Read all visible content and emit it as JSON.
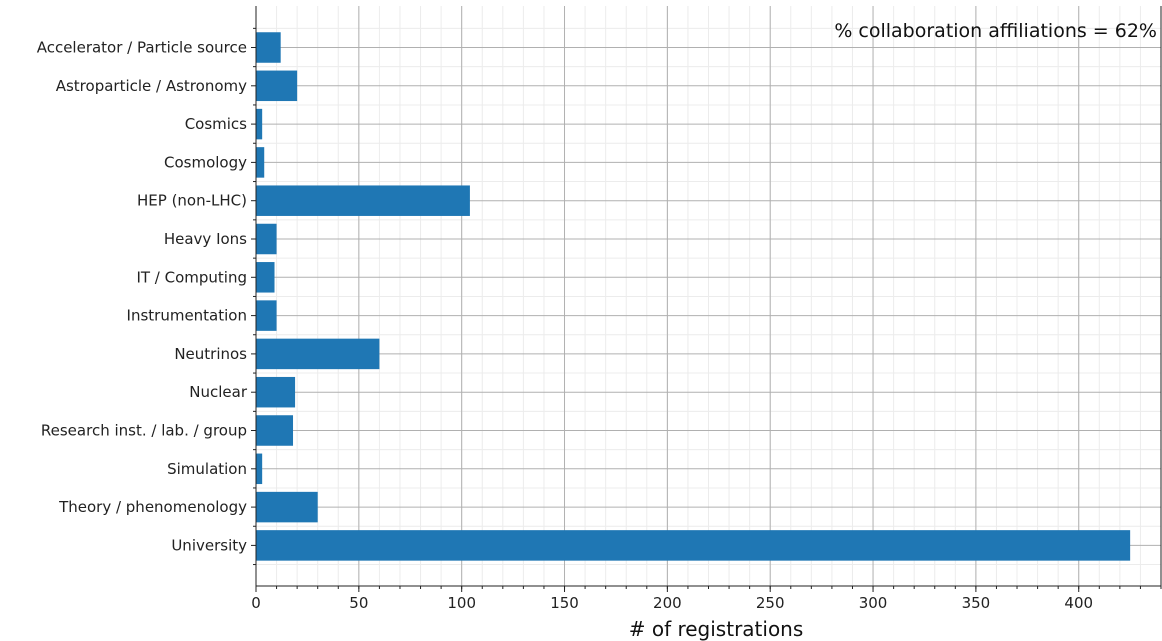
{
  "chart_data": {
    "type": "bar",
    "orientation": "horizontal",
    "categories": [
      "Accelerator / Particle source",
      "Astroparticle / Astronomy",
      "Cosmics",
      "Cosmology",
      "HEP (non-LHC)",
      "Heavy Ions",
      "IT / Computing",
      "Instrumentation",
      "Neutrinos",
      "Nuclear",
      "Research inst. / lab. / group",
      "Simulation",
      "Theory / phenomenology",
      "University"
    ],
    "values": [
      12,
      20,
      3,
      4,
      104,
      10,
      9,
      10,
      60,
      19,
      18,
      3,
      30,
      425
    ],
    "xlabel": "# of registrations",
    "ylabel": "",
    "xlim": [
      0,
      440
    ],
    "xticks": [
      0,
      50,
      100,
      150,
      200,
      250,
      300,
      350,
      400
    ],
    "annotation": "% collaboration affiliations = 62%",
    "legend": "none",
    "grid": true,
    "minor_grid": true,
    "bar_color": "#1f77b4"
  }
}
